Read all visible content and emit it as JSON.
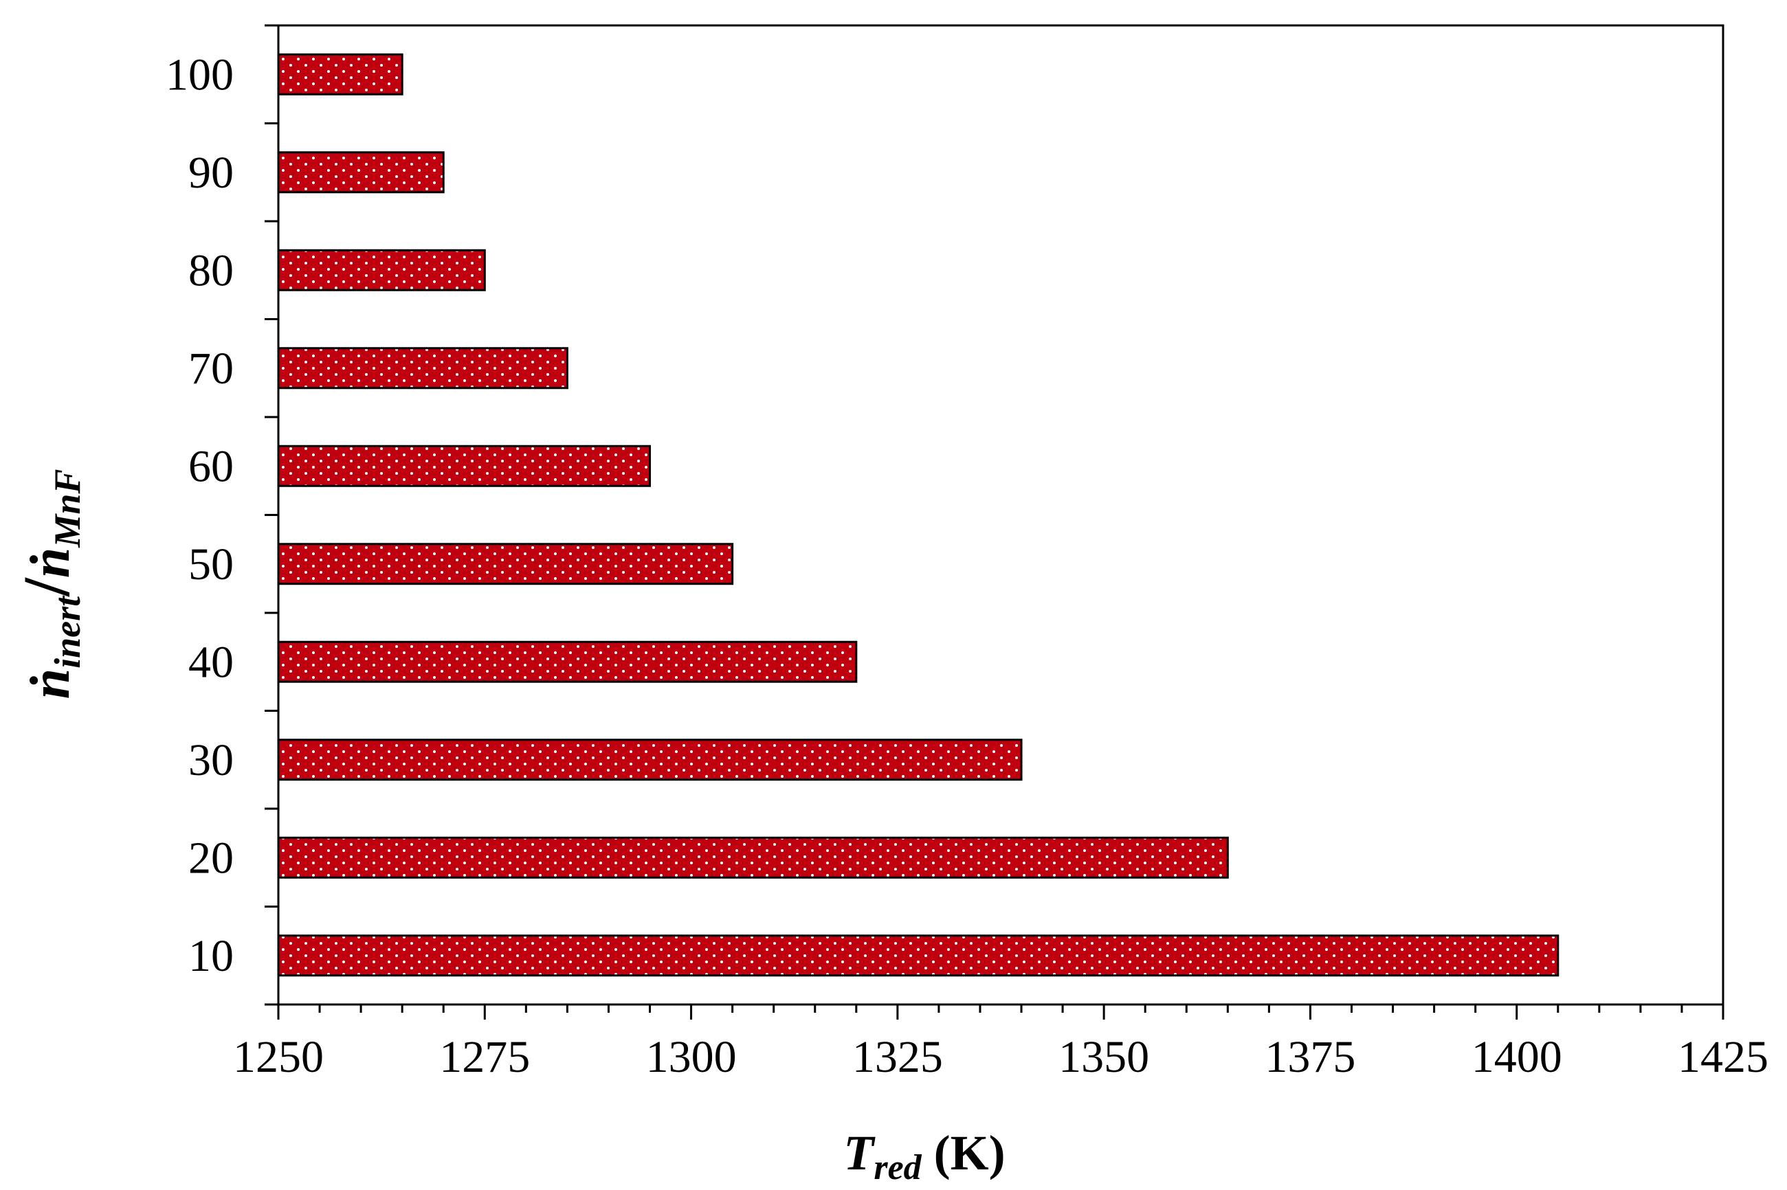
{
  "chart_data": {
    "type": "bar",
    "orientation": "horizontal",
    "categories": [
      "100",
      "90",
      "80",
      "70",
      "60",
      "50",
      "40",
      "30",
      "20",
      "10"
    ],
    "values": [
      1265,
      1270,
      1275,
      1285,
      1295,
      1305,
      1320,
      1340,
      1365,
      1405
    ],
    "xlim": [
      1250,
      1425
    ],
    "x_ticks": [
      "1250",
      "1275",
      "1300",
      "1325",
      "1350",
      "1375",
      "1400",
      "1425"
    ],
    "xlabel": {
      "main": "T",
      "subscript": "red",
      "unit": "(K)"
    },
    "ylabel": {
      "numerator": "ṅ",
      "numerator_sub": "inert",
      "slash": "/",
      "denominator": "ṅ",
      "denominator_sub": "MnF"
    },
    "bar_color": "#c0000e",
    "bar_pattern": "white dots",
    "grid": false,
    "legend": false
  }
}
